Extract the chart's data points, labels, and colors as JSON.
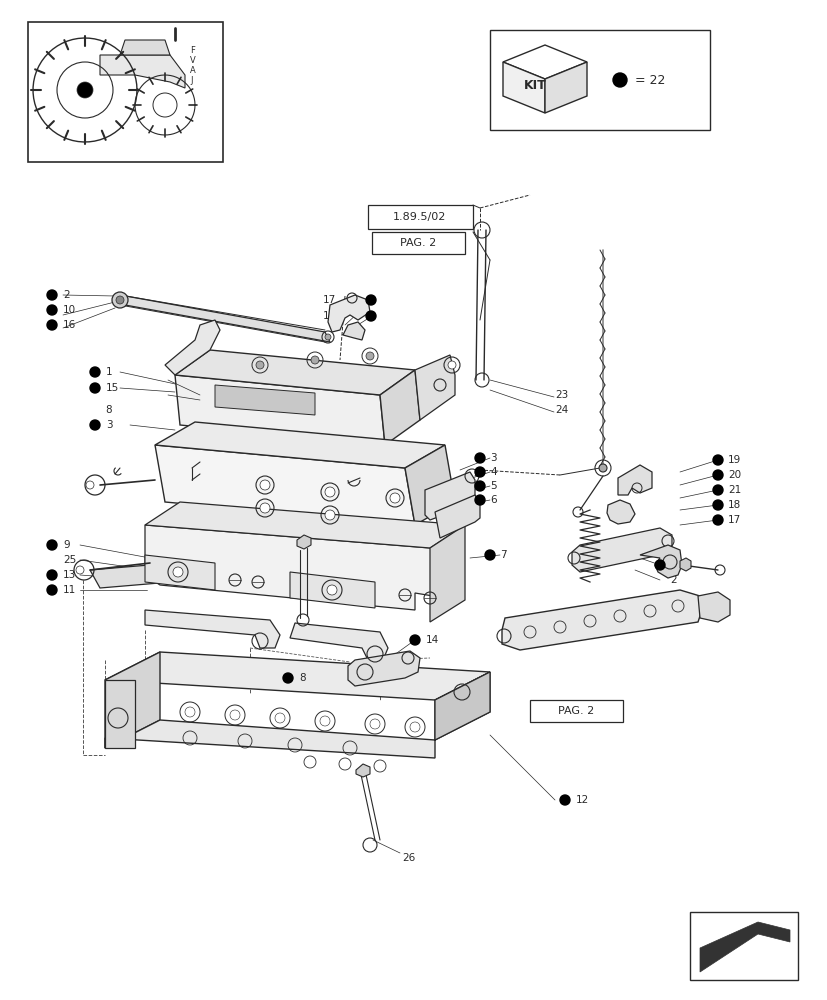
{
  "bg_color": "#ffffff",
  "line_color": "#2a2a2a",
  "page_ref1": "1.89.5/02",
  "page_ref2": "PAG. 2",
  "kit_text": "KIT",
  "kit_num": "= 22",
  "figsize": [
    8.28,
    10.0
  ],
  "dpi": 100
}
